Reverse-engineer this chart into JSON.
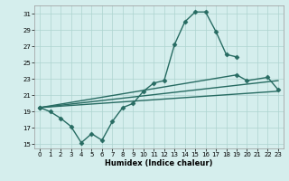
{
  "xlabel": "Humidex (Indice chaleur)",
  "x_main": [
    0,
    1,
    2,
    3,
    4,
    5,
    6,
    7,
    8,
    9,
    10,
    11,
    12,
    13,
    14,
    15,
    16,
    17,
    18,
    19
  ],
  "y_main": [
    19.5,
    19.0,
    18.2,
    17.2,
    15.2,
    16.3,
    15.5,
    17.8,
    19.5,
    20.0,
    21.5,
    22.5,
    22.8,
    27.2,
    30.0,
    31.2,
    31.2,
    28.8,
    26.0,
    25.7
  ],
  "line_straight1": [
    [
      0,
      23
    ],
    [
      19.5,
      21.5
    ]
  ],
  "line_straight2": [
    [
      0,
      23
    ],
    [
      19.5,
      22.8
    ]
  ],
  "x_line3": [
    0,
    19,
    20,
    22,
    23
  ],
  "y_line3": [
    19.5,
    23.5,
    22.8,
    23.2,
    21.7
  ],
  "ylim": [
    14.5,
    32.0
  ],
  "yticks": [
    15,
    17,
    19,
    21,
    23,
    25,
    27,
    29,
    31
  ],
  "xticks": [
    0,
    1,
    2,
    3,
    4,
    5,
    6,
    7,
    8,
    9,
    10,
    11,
    12,
    13,
    14,
    15,
    16,
    17,
    18,
    19,
    20,
    21,
    22,
    23
  ],
  "xlim": [
    -0.5,
    23.5
  ],
  "bg_color": "#d5eeed",
  "grid_color": "#add4d0",
  "line_color": "#276b62",
  "marker": "D",
  "marker_size": 2.5,
  "line_width": 1.0
}
